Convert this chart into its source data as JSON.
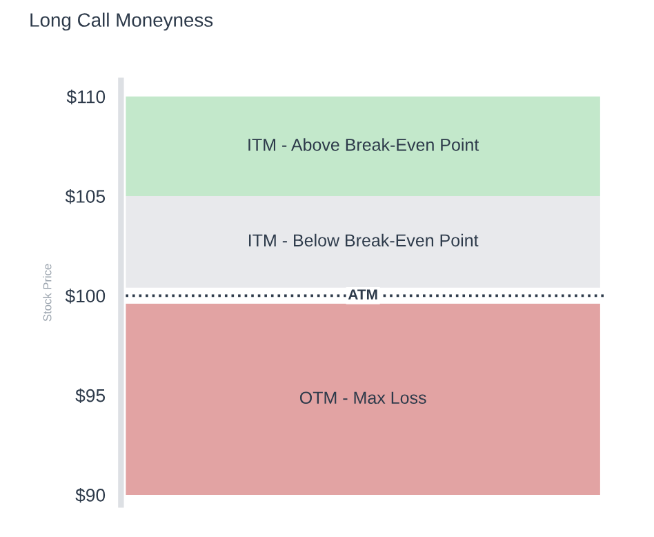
{
  "chart_data": {
    "type": "bar",
    "title": "Long Call Moneyness",
    "ylabel": "Stock Price",
    "categories": [
      null
    ],
    "ylim": [
      89.5,
      110.8
    ],
    "yticks": [
      {
        "value": 90,
        "label": "$90"
      },
      {
        "value": 95,
        "label": "$95"
      },
      {
        "value": 100,
        "label": "$100"
      },
      {
        "value": 105,
        "label": "$105"
      },
      {
        "value": 110,
        "label": "$110"
      }
    ],
    "series": [
      {
        "name": "OTM - Max Loss",
        "color": "#e2a3a3",
        "base": [
          90
        ],
        "values": [
          9.6
        ]
      },
      {
        "name": "ITM - Below Break-Even Point",
        "color": "#e8e9ec",
        "base": [
          100.4
        ],
        "values": [
          4.6
        ]
      },
      {
        "name": "ITM - Above Break-Even Point",
        "color": "#c3e8cb",
        "base": [
          105
        ],
        "values": [
          5
        ]
      }
    ],
    "ref_lines": [
      {
        "axis": "y",
        "value": 100,
        "label": "ATM",
        "color": "#2d3a4a",
        "line_style": "dotted"
      }
    ]
  }
}
